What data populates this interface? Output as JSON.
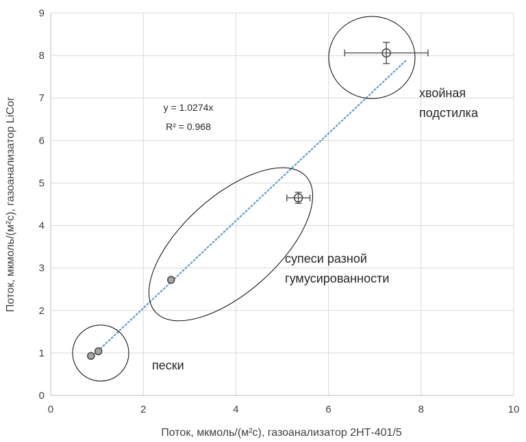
{
  "chart_data": {
    "type": "scatter",
    "xlabel": "Поток, мкмоль/(м²с), газоанализатор 2НТ-401/5",
    "ylabel": "Поток, мкмоль/(м²с), газоанализатор LiCor",
    "xlim": [
      0,
      10
    ],
    "ylim": [
      0,
      9
    ],
    "xticks": [
      "0",
      "2",
      "4",
      "6",
      "8",
      "10"
    ],
    "yticks": [
      "0",
      "1",
      "2",
      "3",
      "4",
      "5",
      "6",
      "7",
      "8",
      "9"
    ],
    "grid": true,
    "points": [
      {
        "x": 0.87,
        "y": 0.93
      },
      {
        "x": 1.03,
        "y": 1.04
      },
      {
        "x": 2.6,
        "y": 2.72
      },
      {
        "x": 5.35,
        "y": 4.65,
        "xerr": 0.25,
        "yerr": 0.13
      },
      {
        "x": 7.25,
        "y": 8.06,
        "xerr": 0.9,
        "yerr": 0.25
      }
    ],
    "trendline": {
      "slope": 1.0274,
      "x_range": [
        0.9,
        7.7
      ],
      "style": "dotted",
      "color": "#5b9bd5"
    },
    "equation": "y = 1.0274x",
    "r_squared": "R² = 0.968",
    "annotations": [
      "пески",
      "супеси разной",
      "гумусированности",
      "хвойная",
      "подстилка"
    ]
  }
}
